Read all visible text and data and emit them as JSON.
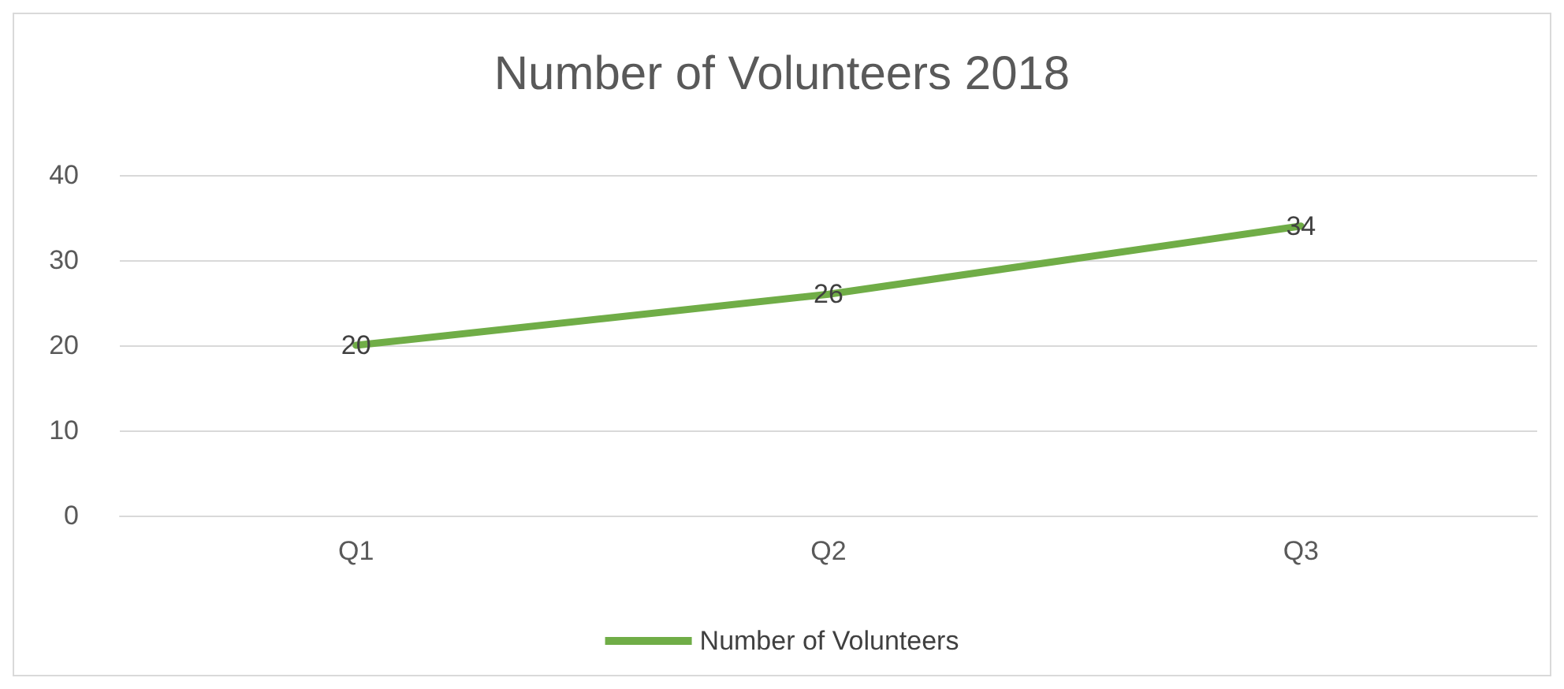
{
  "chart_data": {
    "type": "line",
    "title": "Number of Volunteers 2018",
    "categories": [
      "Q1",
      "Q2",
      "Q3"
    ],
    "series": [
      {
        "name": "Number of Volunteers",
        "color": "#70ad47",
        "values": [
          20,
          26,
          34
        ]
      }
    ],
    "ylim": [
      0,
      40
    ],
    "yticks": [
      0,
      10,
      20,
      30,
      40
    ],
    "grid": "y",
    "legend": "bottom",
    "data_labels": true,
    "marker": "none",
    "line_style": "solid"
  }
}
